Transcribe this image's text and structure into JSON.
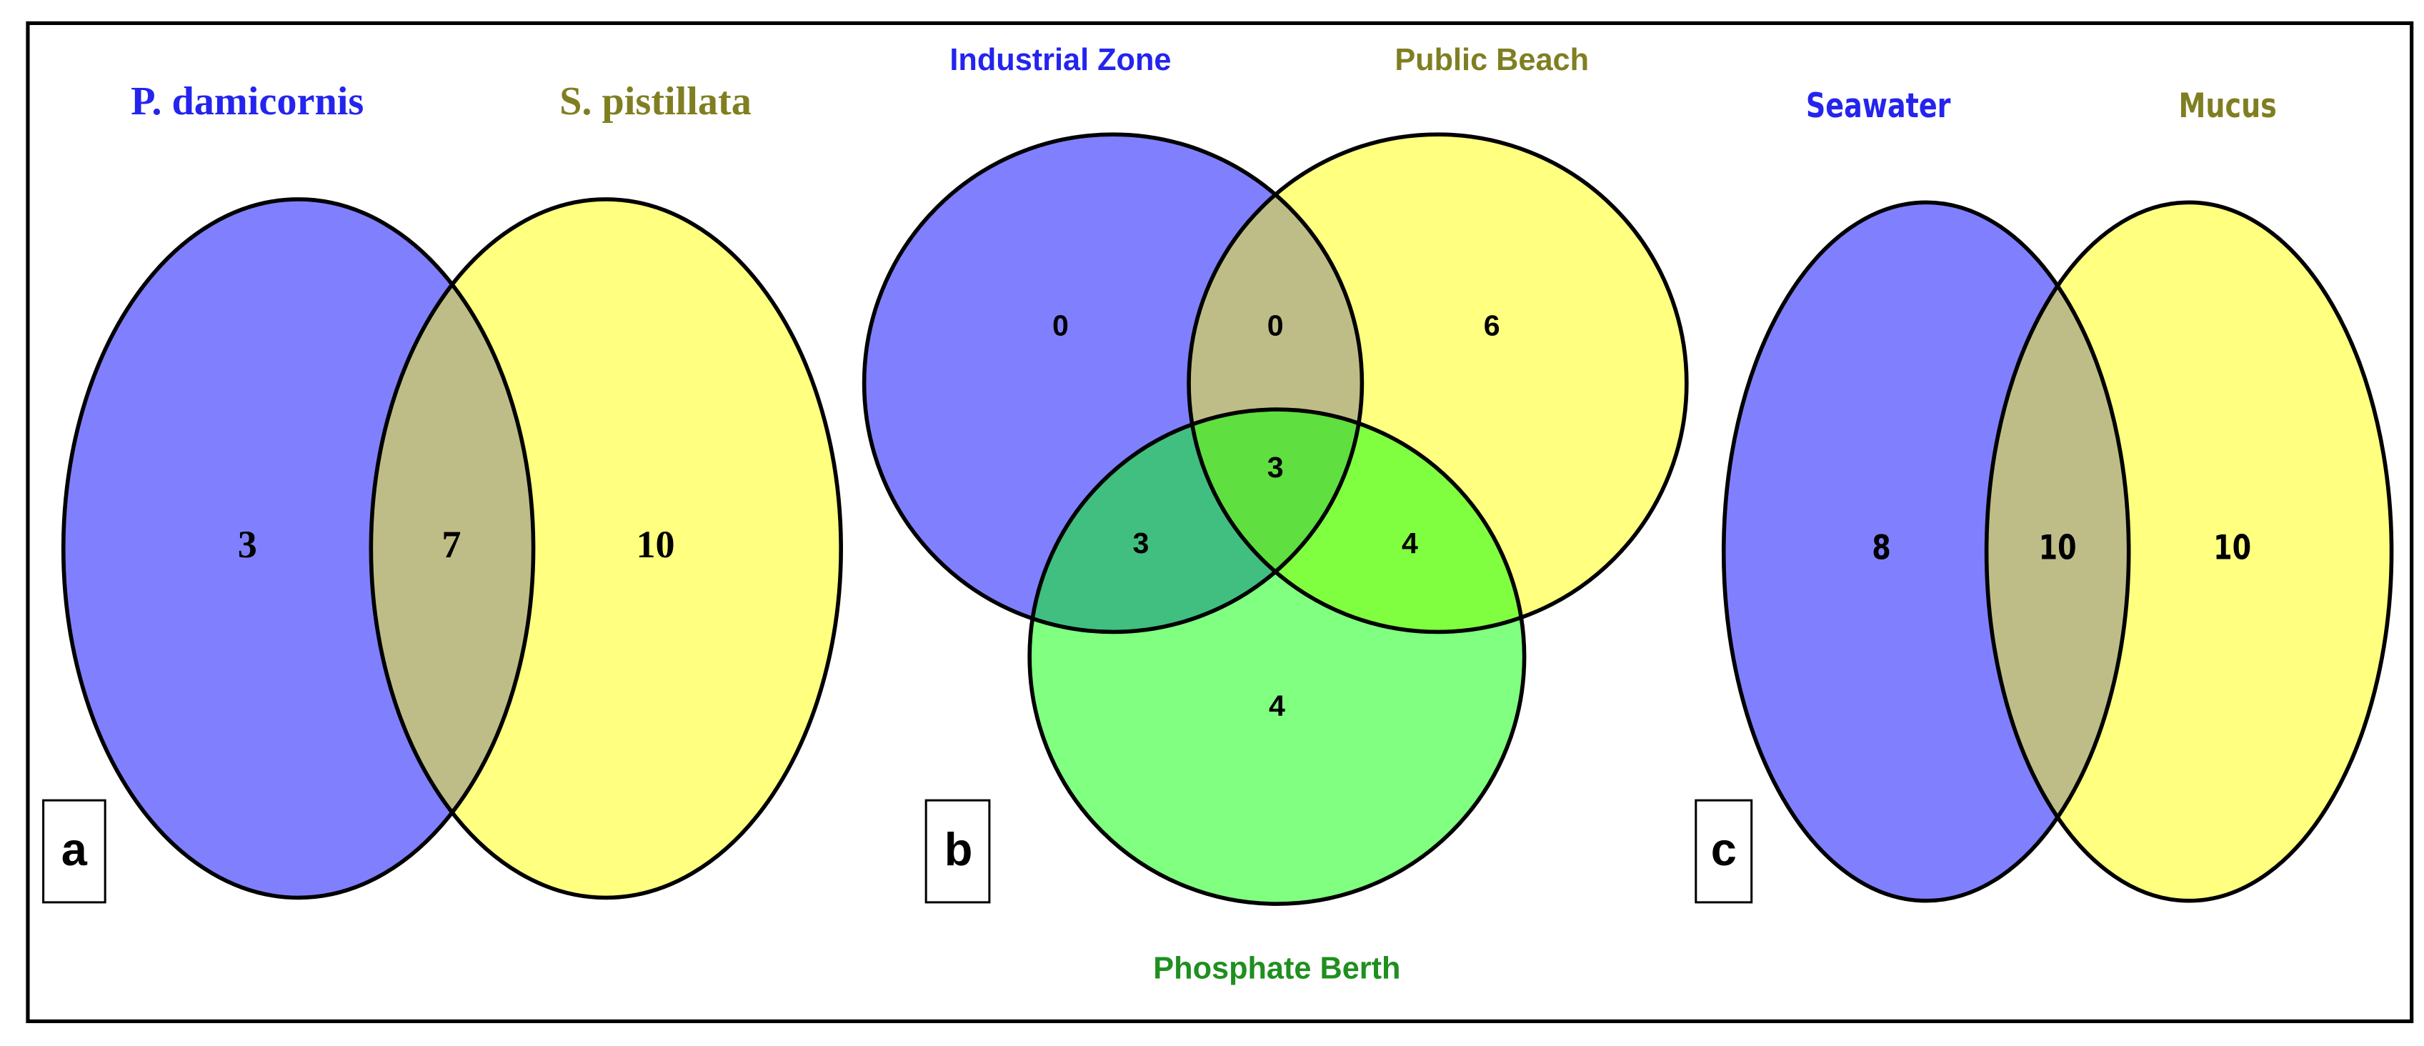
{
  "panels": [
    {
      "letter": "a",
      "sets": [
        "P. damicornis",
        "S. pistillata"
      ],
      "counts": [
        3,
        7,
        10
      ]
    },
    {
      "letter": "b",
      "sets": [
        "Industrial Zone",
        "Public Beach",
        "Phosphate Berth"
      ],
      "counts": [
        0,
        0,
        6,
        3,
        3,
        4,
        4
      ]
    },
    {
      "letter": "c",
      "sets": [
        "Seawater",
        "Mucus"
      ],
      "counts": [
        8,
        10,
        10
      ]
    }
  ]
}
